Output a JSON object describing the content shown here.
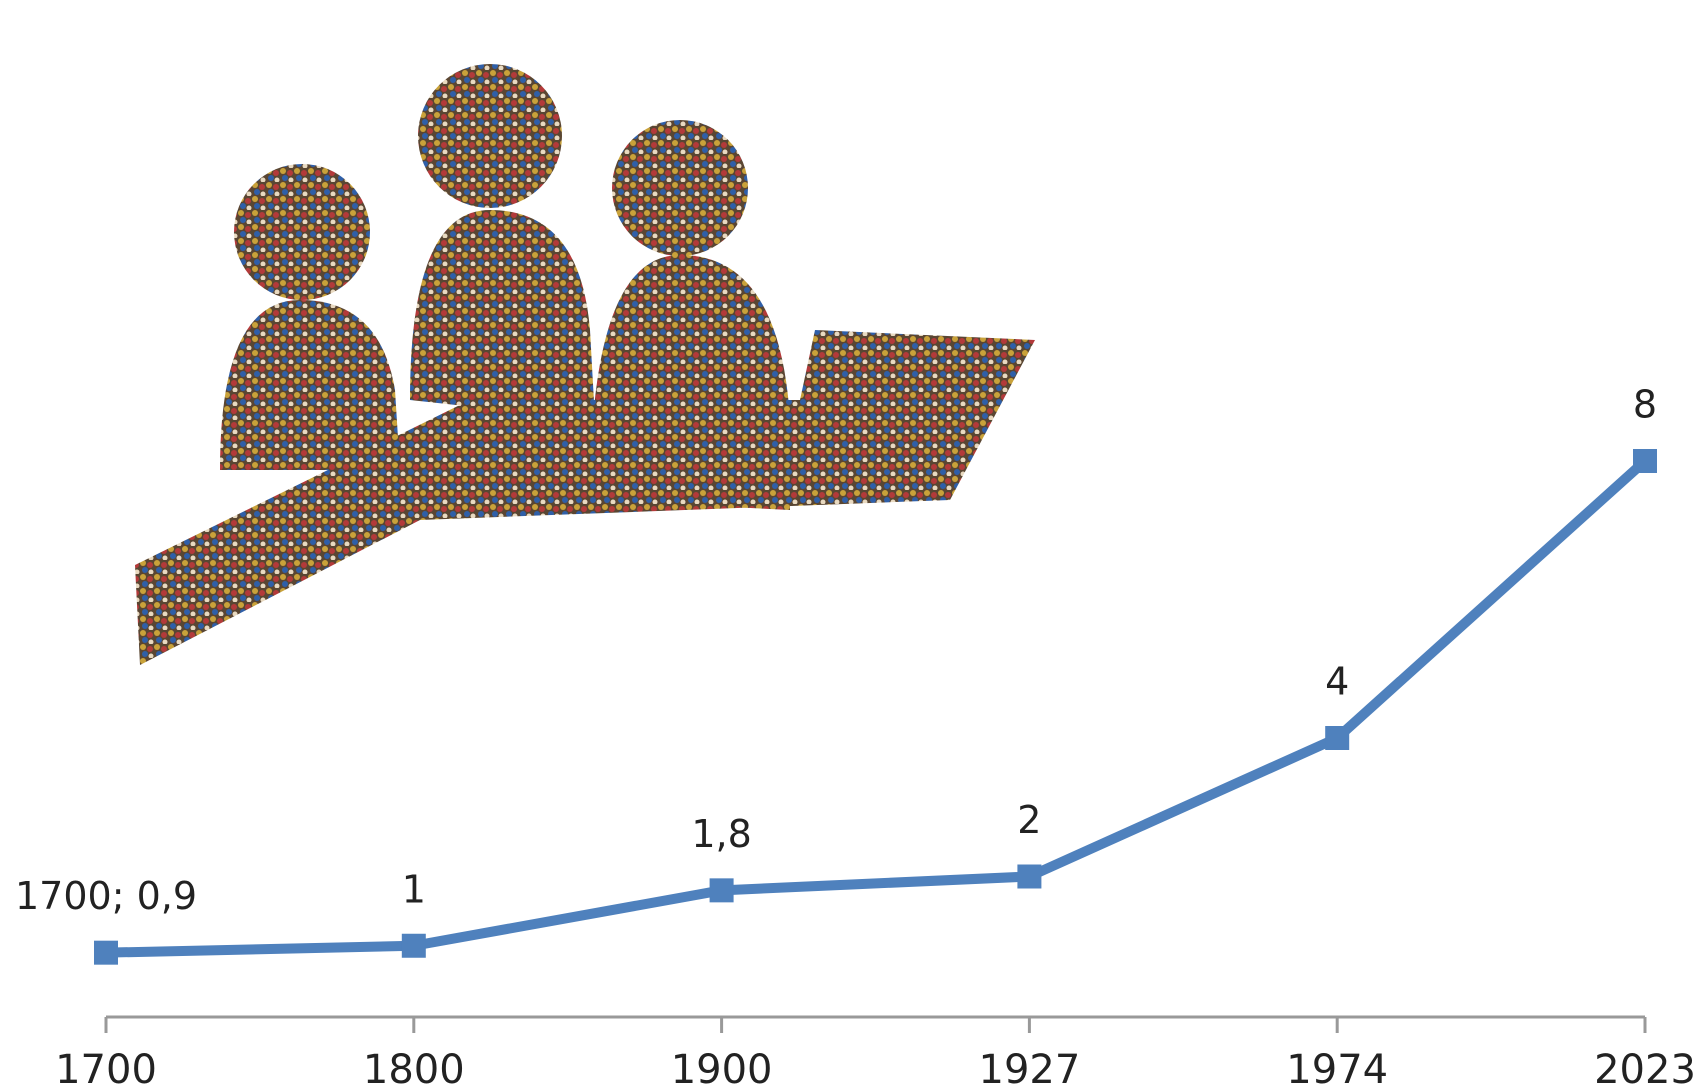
{
  "chart_data": {
    "type": "line",
    "categories": [
      "1700",
      "1800",
      "1900",
      "1927",
      "1974",
      "2023"
    ],
    "series": [
      {
        "color": "#4f81bd",
        "values": [
          0.9,
          1,
          1.8,
          2,
          4,
          8
        ],
        "value_labels": [
          "1700; 0,9",
          "1",
          "1,8",
          "2",
          "4",
          "8"
        ]
      }
    ],
    "ylim": [
      0,
      8
    ]
  }
}
